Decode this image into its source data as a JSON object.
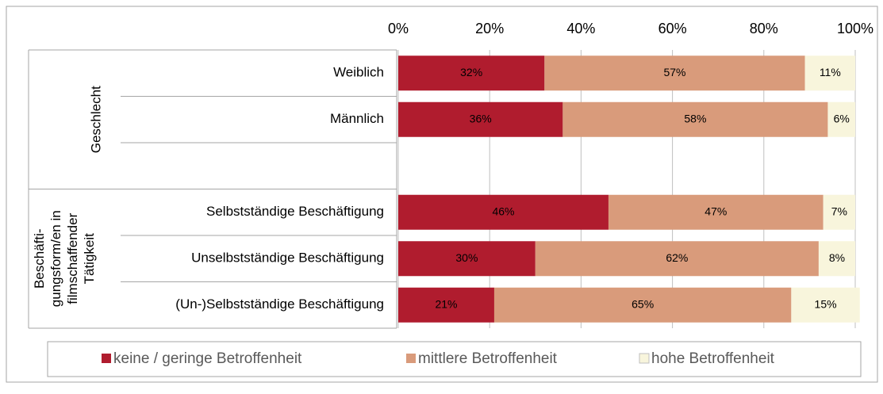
{
  "chart_data": {
    "type": "stacked_bar_horizontal",
    "categories": [
      "Weiblich",
      "Männlich",
      null,
      "Selbstständige Beschäftigung",
      "Unselbstständige Beschäftigung",
      "(Un-)Selbstständige Beschäftigung"
    ],
    "groups": [
      {
        "lines": [
          "Geschlecht"
        ]
      },
      {
        "lines": [
          "Beschäfti-",
          "gungsform/en in",
          "filmschaffender",
          "Tätigkeit"
        ]
      }
    ],
    "series": [
      {
        "name": "keine / geringe Betroffenheit",
        "color": "#b01c2e",
        "values": [
          32,
          36,
          null,
          46,
          30,
          21
        ],
        "value_labels": [
          "32%",
          "36%",
          null,
          "46%",
          "30%",
          "21%"
        ]
      },
      {
        "name": "mittlere Betroffenheit",
        "color": "#d99b7b",
        "values": [
          57,
          58,
          null,
          47,
          62,
          65
        ],
        "value_labels": [
          "57%",
          "58%",
          null,
          "47%",
          "62%",
          "65%"
        ]
      },
      {
        "name": "hohe Betroffenheit",
        "color": "#f8f5dc",
        "values": [
          11,
          6,
          null,
          7,
          8,
          15
        ],
        "value_labels": [
          "11%",
          "6%",
          null,
          "7%",
          "8%",
          "15%"
        ]
      }
    ],
    "xlim": [
      0,
      100
    ],
    "xticks": [
      {
        "value": 0,
        "label": "0%"
      },
      {
        "value": 20,
        "label": "20%"
      },
      {
        "value": 40,
        "label": "40%"
      },
      {
        "value": 60,
        "label": "60%"
      },
      {
        "value": 80,
        "label": "80%"
      },
      {
        "value": 100,
        "label": "100%"
      }
    ],
    "grid": true,
    "legend": "bottom"
  }
}
